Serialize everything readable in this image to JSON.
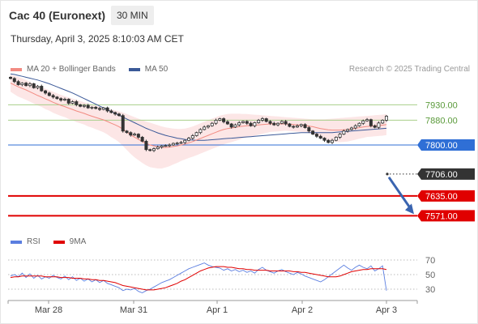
{
  "header": {
    "title": "Cac 40 (Euronext)",
    "timeframe": "30 MIN",
    "timestamp": "Thursday, April 3, 2025 8:10:03 AM CET"
  },
  "legend": {
    "bb": {
      "label": "MA 20 + Bollinger Bands",
      "color": "#f28b82"
    },
    "ma50": {
      "label": "MA 50",
      "color": "#3b5998"
    },
    "rsi": {
      "label": "RSI",
      "color": "#5b7ee0"
    },
    "ma9": {
      "label": "9MA",
      "color": "#e00000"
    }
  },
  "credit": "Research © 2025 Trading Central",
  "chart_data": [
    {
      "type": "candlestick",
      "title": "",
      "xlabel": "",
      "ylabel": "",
      "x_ticks": [
        "Mar 28",
        "Mar 31",
        "Apr 1",
        "Apr 2",
        "Apr 3"
      ],
      "ylim": [
        7530,
        8020
      ],
      "grid": false,
      "close": [
        8015,
        8005,
        7995,
        8000,
        7992,
        7998,
        7985,
        7990,
        7975,
        7968,
        7960,
        7955,
        7950,
        7945,
        7948,
        7935,
        7940,
        7930,
        7925,
        7928,
        7920,
        7922,
        7918,
        7915,
        7920,
        7910,
        7905,
        7900,
        7895,
        7845,
        7840,
        7832,
        7835,
        7825,
        7812,
        7785,
        7782,
        7788,
        7793,
        7797,
        7798,
        7800,
        7805,
        7806,
        7808,
        7815,
        7822,
        7830,
        7840,
        7850,
        7858,
        7862,
        7870,
        7880,
        7885,
        7875,
        7868,
        7858,
        7865,
        7872,
        7876,
        7870,
        7862,
        7872,
        7880,
        7885,
        7876,
        7870,
        7865,
        7870,
        7876,
        7868,
        7860,
        7858,
        7862,
        7866,
        7856,
        7845,
        7835,
        7828,
        7822,
        7815,
        7808,
        7815,
        7825,
        7835,
        7845,
        7850,
        7855,
        7862,
        7870,
        7878,
        7882,
        7862,
        7857,
        7871,
        7880,
        7893
      ],
      "ma20": [
        8000,
        7994,
        7988,
        7983,
        7978,
        7972,
        7966,
        7960,
        7955,
        7949,
        7944,
        7938,
        7933,
        7928,
        7924,
        7919,
        7915,
        7910,
        7906,
        7902,
        7897,
        7893,
        7889,
        7885,
        7881,
        7876,
        7870,
        7865,
        7859,
        7851,
        7842,
        7833,
        7825,
        7818,
        7811,
        7805,
        7800,
        7797,
        7794,
        7792,
        7792,
        7793,
        7795,
        7797,
        7800,
        7803,
        7807,
        7811,
        7816,
        7821,
        7826,
        7831,
        7836,
        7841,
        7846,
        7850,
        7853,
        7855,
        7857,
        7859,
        7861,
        7862,
        7863,
        7864,
        7865,
        7866,
        7867,
        7868,
        7868,
        7868,
        7868,
        7868,
        7867,
        7866,
        7865,
        7864,
        7863,
        7861,
        7859,
        7856,
        7853,
        7851,
        7849,
        7848,
        7848,
        7848,
        7849,
        7850,
        7852,
        7854,
        7856,
        7858,
        7860,
        7861,
        7862,
        7863,
        7864,
        7866
      ],
      "bb_upper": [
        8028,
        8024,
        8020,
        8015,
        8010,
        8004,
        7998,
        7992,
        7987,
        7982,
        7977,
        7972,
        7967,
        7962,
        7958,
        7954,
        7950,
        7946,
        7942,
        7938,
        7934,
        7930,
        7927,
        7924,
        7921,
        7918,
        7915,
        7912,
        7909,
        7905,
        7900,
        7895,
        7890,
        7885,
        7880,
        7876,
        7872,
        7868,
        7864,
        7860,
        7857,
        7855,
        7853,
        7852,
        7852,
        7853,
        7856,
        7860,
        7865,
        7870,
        7875,
        7880,
        7885,
        7890,
        7895,
        7898,
        7900,
        7901,
        7901,
        7901,
        7900,
        7900,
        7899,
        7898,
        7897,
        7896,
        7895,
        7894,
        7893,
        7892,
        7891,
        7890,
        7889,
        7888,
        7887,
        7886,
        7885,
        7884,
        7883,
        7883,
        7883,
        7883,
        7884,
        7885,
        7886,
        7887,
        7888,
        7889,
        7890,
        7891,
        7892,
        7893,
        7894,
        7895,
        7896,
        7897,
        7898,
        7900
      ],
      "bb_lower": [
        7972,
        7964,
        7956,
        7951,
        7946,
        7940,
        7934,
        7928,
        7923,
        7916,
        7911,
        7904,
        7899,
        7894,
        7890,
        7884,
        7880,
        7874,
        7870,
        7866,
        7860,
        7856,
        7851,
        7846,
        7841,
        7834,
        7825,
        7818,
        7809,
        7797,
        7784,
        7771,
        7760,
        7751,
        7742,
        7734,
        7728,
        7726,
        7724,
        7724,
        7727,
        7731,
        7737,
        7742,
        7748,
        7753,
        7758,
        7762,
        7767,
        7772,
        7777,
        7782,
        7787,
        7792,
        7797,
        7802,
        7806,
        7809,
        7813,
        7817,
        7822,
        7824,
        7827,
        7830,
        7833,
        7836,
        7839,
        7842,
        7843,
        7844,
        7845,
        7846,
        7845,
        7844,
        7843,
        7842,
        7841,
        7838,
        7835,
        7829,
        7823,
        7819,
        7814,
        7811,
        7810,
        7809,
        7810,
        7811,
        7814,
        7817,
        7820,
        7823,
        7826,
        7827,
        7828,
        7829,
        7830,
        7832
      ],
      "ma50": [
        8030,
        8028,
        8025,
        8022,
        8019,
        8016,
        8013,
        8010,
        8006,
        8002,
        7998,
        7993,
        7988,
        7983,
        7978,
        7973,
        7968,
        7962,
        7956,
        7950,
        7944,
        7938,
        7932,
        7926,
        7920,
        7914,
        7908,
        7902,
        7896,
        7890,
        7884,
        7878,
        7872,
        7866,
        7860,
        7854,
        7849,
        7844,
        7839,
        7835,
        7831,
        7828,
        7825,
        7822,
        7820,
        7818,
        7817,
        7816,
        7815,
        7815,
        7815,
        7816,
        7817,
        7818,
        7819,
        7820,
        7821,
        7822,
        7823,
        7824,
        7825,
        7826,
        7827,
        7828,
        7829,
        7830,
        7831,
        7832,
        7833,
        7834,
        7835,
        7836,
        7837,
        7838,
        7839,
        7840,
        7840,
        7840,
        7840,
        7840,
        7840,
        7840,
        7840,
        7840,
        7841,
        7842,
        7843,
        7844,
        7845,
        7846,
        7847,
        7848,
        7849,
        7850,
        7851,
        7852,
        7853,
        7854
      ],
      "levels": [
        {
          "label": "7930.00",
          "value": 7930,
          "color": "#a8cf8a",
          "style": "thin"
        },
        {
          "label": "7880.00",
          "value": 7880,
          "color": "#a8cf8a",
          "style": "thin"
        },
        {
          "label": "7800.00",
          "value": 7800,
          "color": "#2f6fd6",
          "style": "thin"
        },
        {
          "label": "7706.00",
          "value": 7706,
          "color": "#333333",
          "style": "dotted"
        },
        {
          "label": "7635.00",
          "value": 7635,
          "color": "#e00000",
          "style": "thick"
        },
        {
          "label": "7571.00",
          "value": 7571,
          "color": "#e00000",
          "style": "thick"
        }
      ],
      "label_colors": {
        "7930.00": "#5a9a3a",
        "7880.00": "#5a9a3a"
      },
      "projection": {
        "from": 7706,
        "to": 7571,
        "color": "#3a64b0"
      }
    },
    {
      "type": "line",
      "title": "",
      "ylabel": "",
      "ylim": [
        20,
        80
      ],
      "y_ticks": [
        "70",
        "50",
        "30"
      ],
      "series": [
        {
          "name": "RSI",
          "color": "#5b7ee0",
          "values": [
            48,
            50,
            47,
            52,
            46,
            51,
            45,
            49,
            44,
            47,
            45,
            49,
            46,
            44,
            48,
            43,
            47,
            42,
            45,
            41,
            44,
            40,
            43,
            39,
            42,
            38,
            36,
            34,
            32,
            28,
            30,
            29,
            31,
            27,
            25,
            28,
            30,
            33,
            36,
            39,
            41,
            43,
            46,
            49,
            52,
            55,
            58,
            60,
            62,
            64,
            66,
            63,
            61,
            60,
            59,
            56,
            58,
            55,
            57,
            54,
            56,
            53,
            55,
            52,
            57,
            60,
            56,
            54,
            52,
            55,
            57,
            54,
            52,
            50,
            53,
            51,
            48,
            46,
            44,
            42,
            40,
            43,
            47,
            51,
            55,
            59,
            63,
            59,
            56,
            60,
            63,
            60,
            58,
            62,
            55,
            58,
            62,
            28
          ]
        },
        {
          "name": "9MA",
          "color": "#e00000",
          "values": [
            46,
            47,
            47,
            48,
            48,
            48,
            48,
            48,
            48,
            47,
            47,
            47,
            47,
            46,
            46,
            46,
            45,
            45,
            45,
            44,
            44,
            43,
            43,
            42,
            42,
            41,
            40,
            39,
            37,
            35,
            34,
            33,
            32,
            31,
            30,
            29,
            29,
            29,
            30,
            31,
            32,
            34,
            36,
            38,
            41,
            43,
            46,
            49,
            52,
            55,
            57,
            59,
            60,
            61,
            61,
            61,
            60,
            60,
            59,
            58,
            58,
            57,
            57,
            56,
            56,
            56,
            56,
            55,
            55,
            55,
            55,
            55,
            55,
            54,
            54,
            53,
            53,
            52,
            51,
            50,
            49,
            48,
            47,
            47,
            47,
            48,
            50,
            52,
            54,
            55,
            56,
            57,
            57,
            58,
            58,
            58,
            58,
            57
          ]
        }
      ]
    }
  ]
}
